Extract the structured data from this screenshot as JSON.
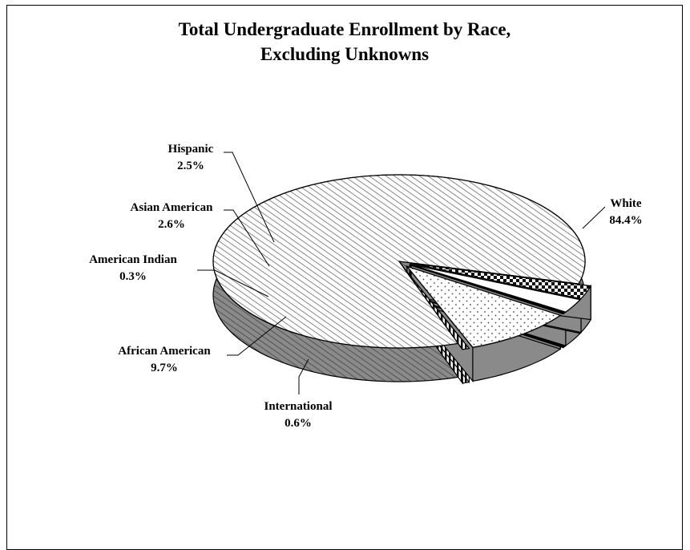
{
  "chart_data": {
    "type": "pie",
    "title": [
      "Total Undergraduate Enrollment  by Race,",
      "Excluding Unknowns"
    ],
    "slices": [
      {
        "label": "White",
        "value_label": "84.4%",
        "value": 84.4,
        "pattern": "diag"
      },
      {
        "label": "International",
        "value_label": "0.6%",
        "value": 0.6,
        "pattern": "vlines"
      },
      {
        "label": "African American",
        "value_label": "9.7%",
        "value": 9.7,
        "pattern": "dots"
      },
      {
        "label": "American Indian",
        "value_label": "0.3%",
        "value": 0.3,
        "pattern": "solid"
      },
      {
        "label": "Asian American",
        "value_label": "2.6%",
        "value": 2.6,
        "pattern": "blank"
      },
      {
        "label": "Hispanic",
        "value_label": "2.5%",
        "value": 2.5,
        "pattern": "checker"
      }
    ]
  }
}
